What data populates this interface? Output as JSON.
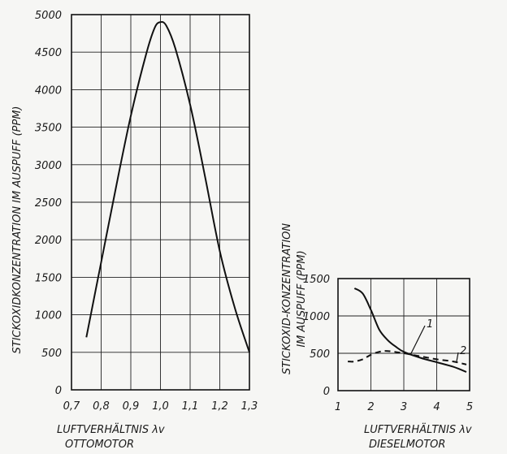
{
  "chart_data": [
    {
      "type": "line",
      "ylabel": "STICKOXIDKONZENTRATION IM AUSPUFF (PPM)",
      "xlabel": "LUFTVERHÄLTNIS λv",
      "caption": "OTTOMOTOR",
      "x_ticks": [
        "0,7",
        "0,8",
        "0,9",
        "1,0",
        "1,1",
        "1,2",
        "1,3"
      ],
      "y_ticks": [
        "0",
        "500",
        "1000",
        "1500",
        "2000",
        "2500",
        "3000",
        "3500",
        "4000",
        "4500",
        "5000"
      ],
      "xlim": [
        0.7,
        1.3
      ],
      "ylim": [
        0,
        5000
      ],
      "grid": true,
      "series": [
        {
          "x": [
            0.75,
            0.8,
            0.85,
            0.9,
            0.95,
            0.98,
            1.0,
            1.02,
            1.05,
            1.1,
            1.15,
            1.2,
            1.25,
            1.3
          ],
          "y": [
            700,
            1700,
            2700,
            3650,
            4450,
            4820,
            4900,
            4850,
            4550,
            3800,
            2850,
            1850,
            1100,
            500
          ]
        }
      ]
    },
    {
      "type": "line",
      "ylabel_line1": "STICKOXID-KONZENTRATION",
      "ylabel_line2": "IM AUSPUFF (PPM)",
      "xlabel": "LUFTVERHÄLTNIS λv",
      "caption": "DIESELMOTOR",
      "x_ticks": [
        "1",
        "2",
        "3",
        "4",
        "5"
      ],
      "y_ticks": [
        "0",
        "500",
        "1000",
        "1500"
      ],
      "xlim": [
        1,
        5
      ],
      "ylim": [
        0,
        1500
      ],
      "grid": true,
      "series": [
        {
          "name": "1",
          "style": "solid",
          "x": [
            1.5,
            1.75,
            2.0,
            2.25,
            2.5,
            2.75,
            3.0,
            3.5,
            4.0,
            4.5,
            4.9
          ],
          "y": [
            1370,
            1300,
            1080,
            820,
            680,
            590,
            520,
            440,
            380,
            320,
            250
          ]
        },
        {
          "name": "2",
          "style": "dashed",
          "x": [
            1.3,
            1.5,
            1.75,
            2.0,
            2.25,
            2.5,
            3.0,
            3.5,
            4.0,
            4.5,
            4.9
          ],
          "y": [
            390,
            390,
            420,
            480,
            520,
            530,
            500,
            460,
            420,
            390,
            350
          ]
        }
      ]
    }
  ]
}
